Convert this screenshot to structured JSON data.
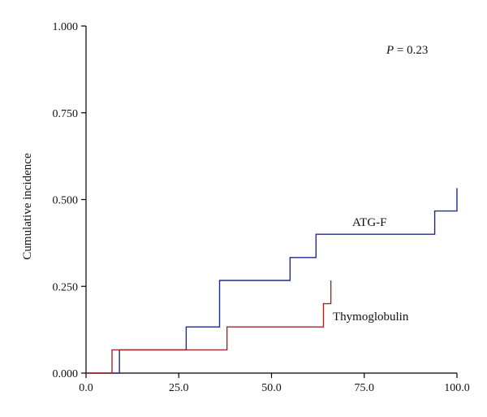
{
  "chart_data": {
    "type": "line",
    "subtype": "step",
    "title": "",
    "xlabel": "",
    "ylabel": "Cumulative incidence",
    "xlim": [
      0,
      100
    ],
    "ylim": [
      0,
      1
    ],
    "x_ticks": [
      "0.0",
      "25.0",
      "50.0",
      "75.0",
      "100.0"
    ],
    "y_ticks": [
      "0.000",
      "0.250",
      "0.500",
      "0.750",
      "1.000"
    ],
    "grid": false,
    "legend": "none",
    "annotations": [
      {
        "text_prefix": "P",
        "text_rest": " = 0.23"
      }
    ],
    "series": [
      {
        "name": "ATG-F",
        "color": "#1f2a8a",
        "points": [
          [
            0,
            0
          ],
          [
            9,
            0
          ],
          [
            9,
            0.067
          ],
          [
            27,
            0.067
          ],
          [
            27,
            0.133
          ],
          [
            36,
            0.133
          ],
          [
            36,
            0.267
          ],
          [
            55,
            0.267
          ],
          [
            55,
            0.333
          ],
          [
            62,
            0.333
          ],
          [
            62,
            0.4
          ],
          [
            94,
            0.4
          ],
          [
            94,
            0.467
          ],
          [
            100,
            0.467
          ],
          [
            100,
            0.533
          ]
        ]
      },
      {
        "name": "Thymoglobulin",
        "color": "#9b2a2a",
        "points": [
          [
            0,
            0
          ],
          [
            7,
            0
          ],
          [
            7,
            0.067
          ],
          [
            38,
            0.067
          ],
          [
            38,
            0.133
          ],
          [
            64,
            0.133
          ],
          [
            64,
            0.2
          ],
          [
            66,
            0.2
          ],
          [
            66,
            0.267
          ]
        ]
      }
    ]
  }
}
